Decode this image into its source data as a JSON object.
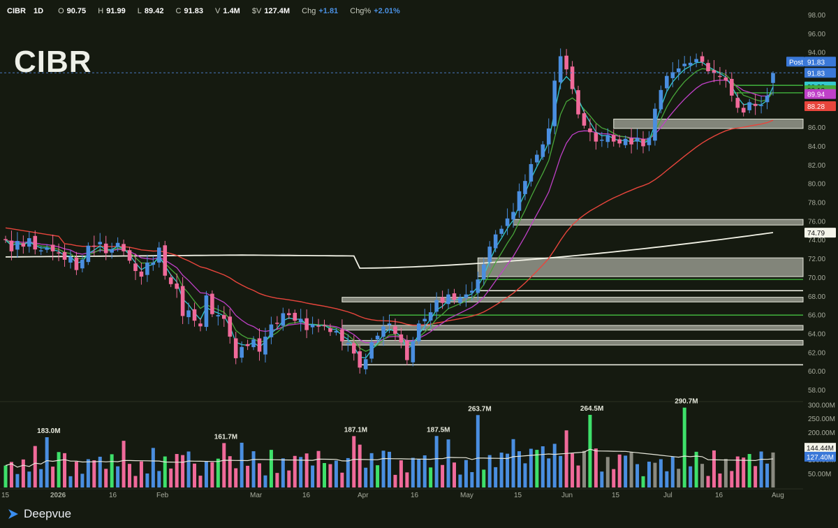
{
  "header": {
    "symbol": "CIBR",
    "interval": "1D",
    "open_label": "O",
    "open": "90.75",
    "high_label": "H",
    "high": "91.99",
    "low_label": "L",
    "low": "89.42",
    "close_label": "C",
    "close": "91.83",
    "volume_label": "V",
    "volume": "1.4M",
    "dollar_volume_label": "$V",
    "dollar_volume": "127.4M",
    "change_label": "Chg",
    "change": "+1.81",
    "change_pct_label": "Chg%",
    "change_pct": "+2.01%"
  },
  "watermark": "CIBR",
  "brand": "Deepvue",
  "colors": {
    "background": "#151a10",
    "up_candle": "#4a8ee0",
    "down_candle": "#f06a9a",
    "ema_fast": "#34c9cf",
    "ema_mid": "#48a63a",
    "sma_50": "#c040c8",
    "sma_100": "#e8453c",
    "sma_200": "#f2f2e6",
    "volume_up_high": "#3ee06a",
    "volume_gray": "#8a8a80"
  },
  "chart_data": {
    "type": "candlestick",
    "ylim": [
      57,
      99
    ],
    "y_ticks": [
      "98.00",
      "96.00",
      "94.00",
      "92.00",
      "90.00",
      "88.00",
      "86.00",
      "84.00",
      "82.00",
      "80.00",
      "78.00",
      "76.00",
      "74.00",
      "72.00",
      "70.00",
      "68.00",
      "66.00",
      "64.00",
      "62.00",
      "60.00",
      "58.00"
    ],
    "x_ticks": [
      "15",
      "2026",
      "16",
      "Feb",
      "Mar",
      "16",
      "Apr",
      "16",
      "May",
      "15",
      "Jun",
      "15",
      "Jul",
      "16",
      "Aug"
    ],
    "closes": [
      74.0,
      72.8,
      73.9,
      73.3,
      74.2,
      73.0,
      72.9,
      73.2,
      72.8,
      72.6,
      71.9,
      72.2,
      70.8,
      71.9,
      73.4,
      73.3,
      73.8,
      72.6,
      73.0,
      73.7,
      72.8,
      71.8,
      70.7,
      70.1,
      71.6,
      71.6,
      73.2,
      70.2,
      69.3,
      68.8,
      65.9,
      66.5,
      65.4,
      64.8,
      68.1,
      66.1,
      66.0,
      65.6,
      63.7,
      61.4,
      62.6,
      62.7,
      63.4,
      62.1,
      63.7,
      65.0,
      65.1,
      66.2,
      66.0,
      65.4,
      65.6,
      64.4,
      65.0,
      64.8,
      64.9,
      64.2,
      64.3,
      63.2,
      63.0,
      61.9,
      60.4,
      61.3,
      63.1,
      63.8,
      64.8,
      65.1,
      64.0,
      63.1,
      61.2,
      63.2,
      65.1,
      65.6,
      66.3,
      67.6,
      67.3,
      68.2,
      67.6,
      67.9,
      68.2,
      68.6,
      69.8,
      71.4,
      73.3,
      74.6,
      75.2,
      76.3,
      77.0,
      79.2,
      80.3,
      82.1,
      83.1,
      84.2,
      85.9,
      91.0,
      93.6,
      92.2,
      90.1,
      87.4,
      86.2,
      85.5,
      84.5,
      84.7,
      85.2,
      84.5,
      84.3,
      84.8,
      84.2,
      84.9,
      84.0,
      84.9,
      88.0,
      90.0,
      91.5,
      91.9,
      92.3,
      92.8,
      92.9,
      93.3,
      93.0,
      92.0,
      91.8,
      91.4,
      91.0,
      89.4,
      88.1,
      87.6,
      88.7,
      88.3,
      88.4,
      89.4,
      91.8
    ],
    "volume_labels": [
      "183.0M",
      "161.7M",
      "263.7M",
      "187.1M",
      "187.5M",
      "264.5M",
      "290.7M"
    ],
    "volume_ticks": [
      "300.00M",
      "250.00M",
      "200.00M",
      "100.00M",
      "50.00M"
    ],
    "volume_sma": "144.44M",
    "current_volume": "127.40M",
    "price_tags": {
      "post_label": "Post",
      "post": "91.83",
      "last": "91.83",
      "ema_fast": "90.22",
      "ema_mid": "90.13",
      "sma_50": "89.94",
      "sma_100": "88.28",
      "sma_200": "74.79"
    },
    "zones": [
      {
        "from": 85.9,
        "to": 86.9,
        "kind": "box"
      },
      {
        "from": 75.6,
        "to": 76.2,
        "kind": "box"
      },
      {
        "from": 70.1,
        "to": 72.1,
        "kind": "box"
      },
      {
        "level": 69.8,
        "kind": "green"
      },
      {
        "level": 68.6,
        "kind": "white"
      },
      {
        "from": 67.4,
        "to": 67.9,
        "kind": "box"
      },
      {
        "level": 66.0,
        "kind": "green"
      },
      {
        "from": 64.4,
        "to": 64.9,
        "kind": "box"
      },
      {
        "from": 62.8,
        "to": 63.3,
        "kind": "box"
      },
      {
        "level": 60.7,
        "kind": "white"
      },
      {
        "level": 90.5,
        "kind": "green"
      },
      {
        "level": 89.7,
        "kind": "green"
      }
    ]
  }
}
